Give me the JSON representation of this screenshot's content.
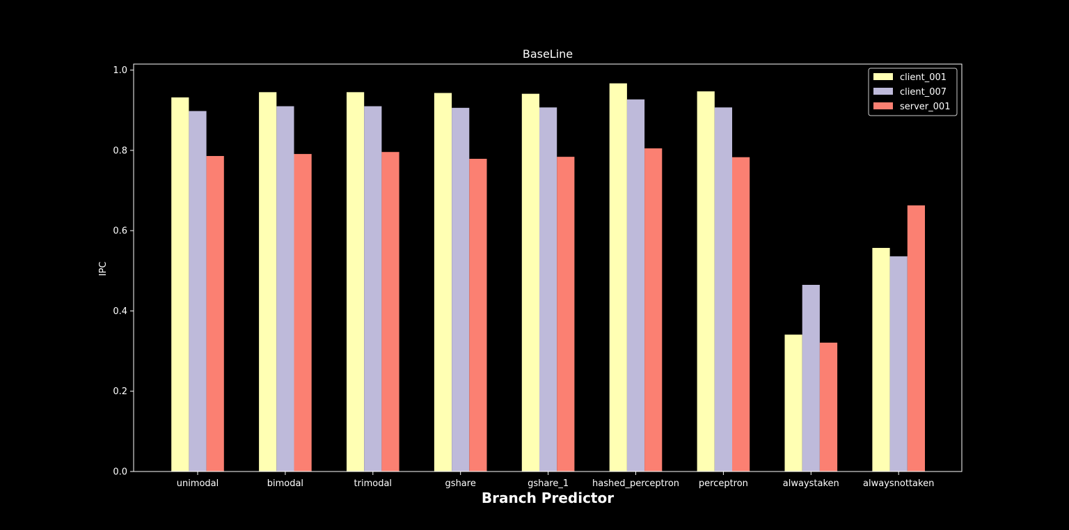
{
  "chart_data": {
    "type": "bar",
    "title": "BaseLine",
    "xlabel": "Branch Predictor",
    "ylabel": "IPC",
    "ylim": [
      0,
      1.015
    ],
    "yticks": [
      0.0,
      0.2,
      0.4,
      0.6,
      0.8,
      1.0
    ],
    "ytick_labels": [
      "0.0",
      "0.2",
      "0.4",
      "0.6",
      "0.8",
      "1.0"
    ],
    "grid": false,
    "legend_position": "top-right",
    "background": "#000000",
    "foreground": "#ffffff",
    "categories": [
      "unimodal",
      "bimodal",
      "trimodal",
      "gshare",
      "gshare_1",
      "hashed_perceptron",
      "perceptron",
      "alwaystaken",
      "alwaysnottaken"
    ],
    "series": [
      {
        "name": "client_001",
        "color": "#ffffb3",
        "values": [
          0.932,
          0.945,
          0.945,
          0.943,
          0.941,
          0.967,
          0.947,
          0.341,
          0.557
        ]
      },
      {
        "name": "client_007",
        "color": "#bebada",
        "values": [
          0.898,
          0.91,
          0.91,
          0.906,
          0.907,
          0.927,
          0.907,
          0.465,
          0.536
        ]
      },
      {
        "name": "server_001",
        "color": "#fb8072",
        "values": [
          0.786,
          0.791,
          0.796,
          0.779,
          0.784,
          0.805,
          0.783,
          0.321,
          0.663
        ]
      }
    ]
  }
}
